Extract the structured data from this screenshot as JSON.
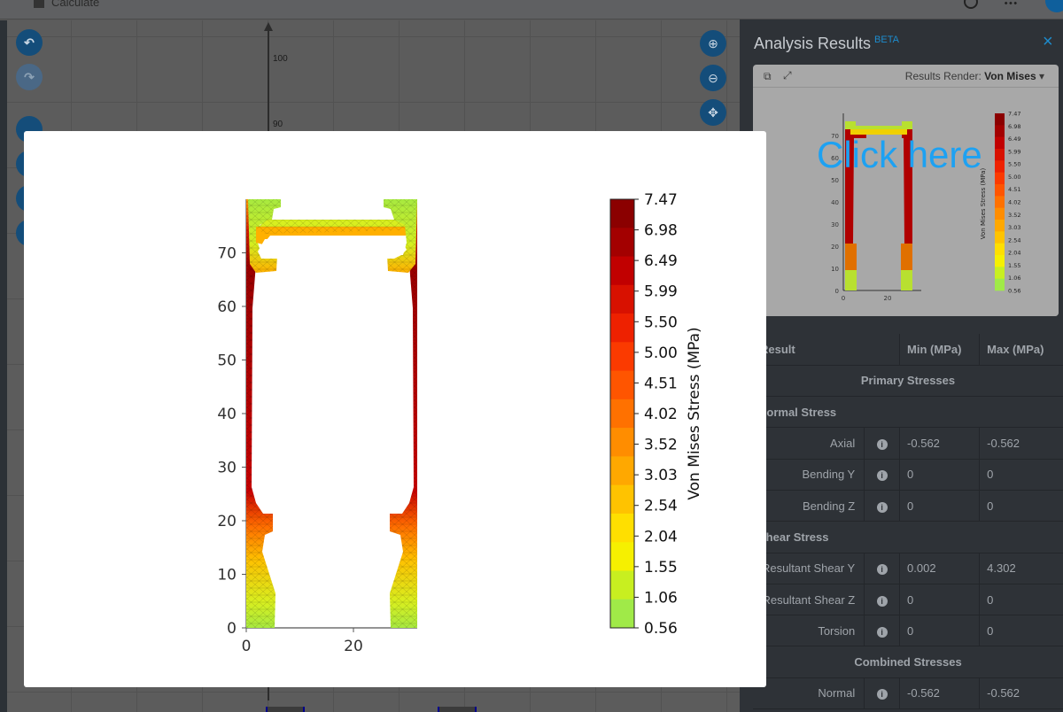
{
  "topbar": {
    "calculate_label": "Calculate"
  },
  "canvas": {
    "ticks": [
      "100",
      "90"
    ]
  },
  "panel": {
    "title": "Analysis Results",
    "beta": "BETA",
    "close": "×",
    "preview": {
      "results_render_label": "Results Render:",
      "results_render_value": "Von Mises",
      "overlay_text": "Click here",
      "mini_colorbar_label": "Von Mises Stress (MPa)",
      "mini_y_ticks": [
        "70",
        "60",
        "50",
        "40",
        "30",
        "20",
        "10",
        "0"
      ],
      "mini_x_ticks": [
        "0",
        "20"
      ]
    },
    "table": {
      "headers": [
        "Result",
        "Min (MPa)",
        "Max (MPa)"
      ],
      "primary_section": "Primary Stresses",
      "normal_stress": "Normal Stress",
      "shear_stress": "Shear Stress",
      "combined_section": "Combined Stresses",
      "rows": [
        {
          "label": "Axial",
          "min": "-0.562",
          "max": "-0.562"
        },
        {
          "label": "Bending Y",
          "min": "0",
          "max": "0"
        },
        {
          "label": "Bending Z",
          "min": "0",
          "max": "0"
        },
        {
          "label": "Resultant Shear Y",
          "min": "0.002",
          "max": "4.302"
        },
        {
          "label": "Resultant Shear Z",
          "min": "0",
          "max": "0"
        },
        {
          "label": "Torsion",
          "min": "0",
          "max": "0"
        },
        {
          "label": "Normal",
          "min": "-0.562",
          "max": "-0.562"
        }
      ]
    }
  },
  "modal": {
    "colorbar_label": "Von Mises Stress (MPa)",
    "y_ticks": [
      "70",
      "60",
      "50",
      "40",
      "30",
      "20",
      "10",
      "0"
    ],
    "x_ticks": [
      "0",
      "20"
    ],
    "colorbar_ticks": [
      "7.47",
      "6.98",
      "6.49",
      "5.99",
      "5.50",
      "5.00",
      "4.51",
      "4.02",
      "3.52",
      "3.03",
      "2.54",
      "2.04",
      "1.55",
      "1.06",
      "0.56"
    ],
    "colorbar_colors": [
      "#8b0000",
      "#a30000",
      "#c10000",
      "#d81100",
      "#ee2100",
      "#fb3a00",
      "#ff5500",
      "#ff7100",
      "#ff8d00",
      "#ffa800",
      "#ffc300",
      "#ffdf00",
      "#f6f000",
      "#c8ef20",
      "#a0ea48"
    ]
  }
}
